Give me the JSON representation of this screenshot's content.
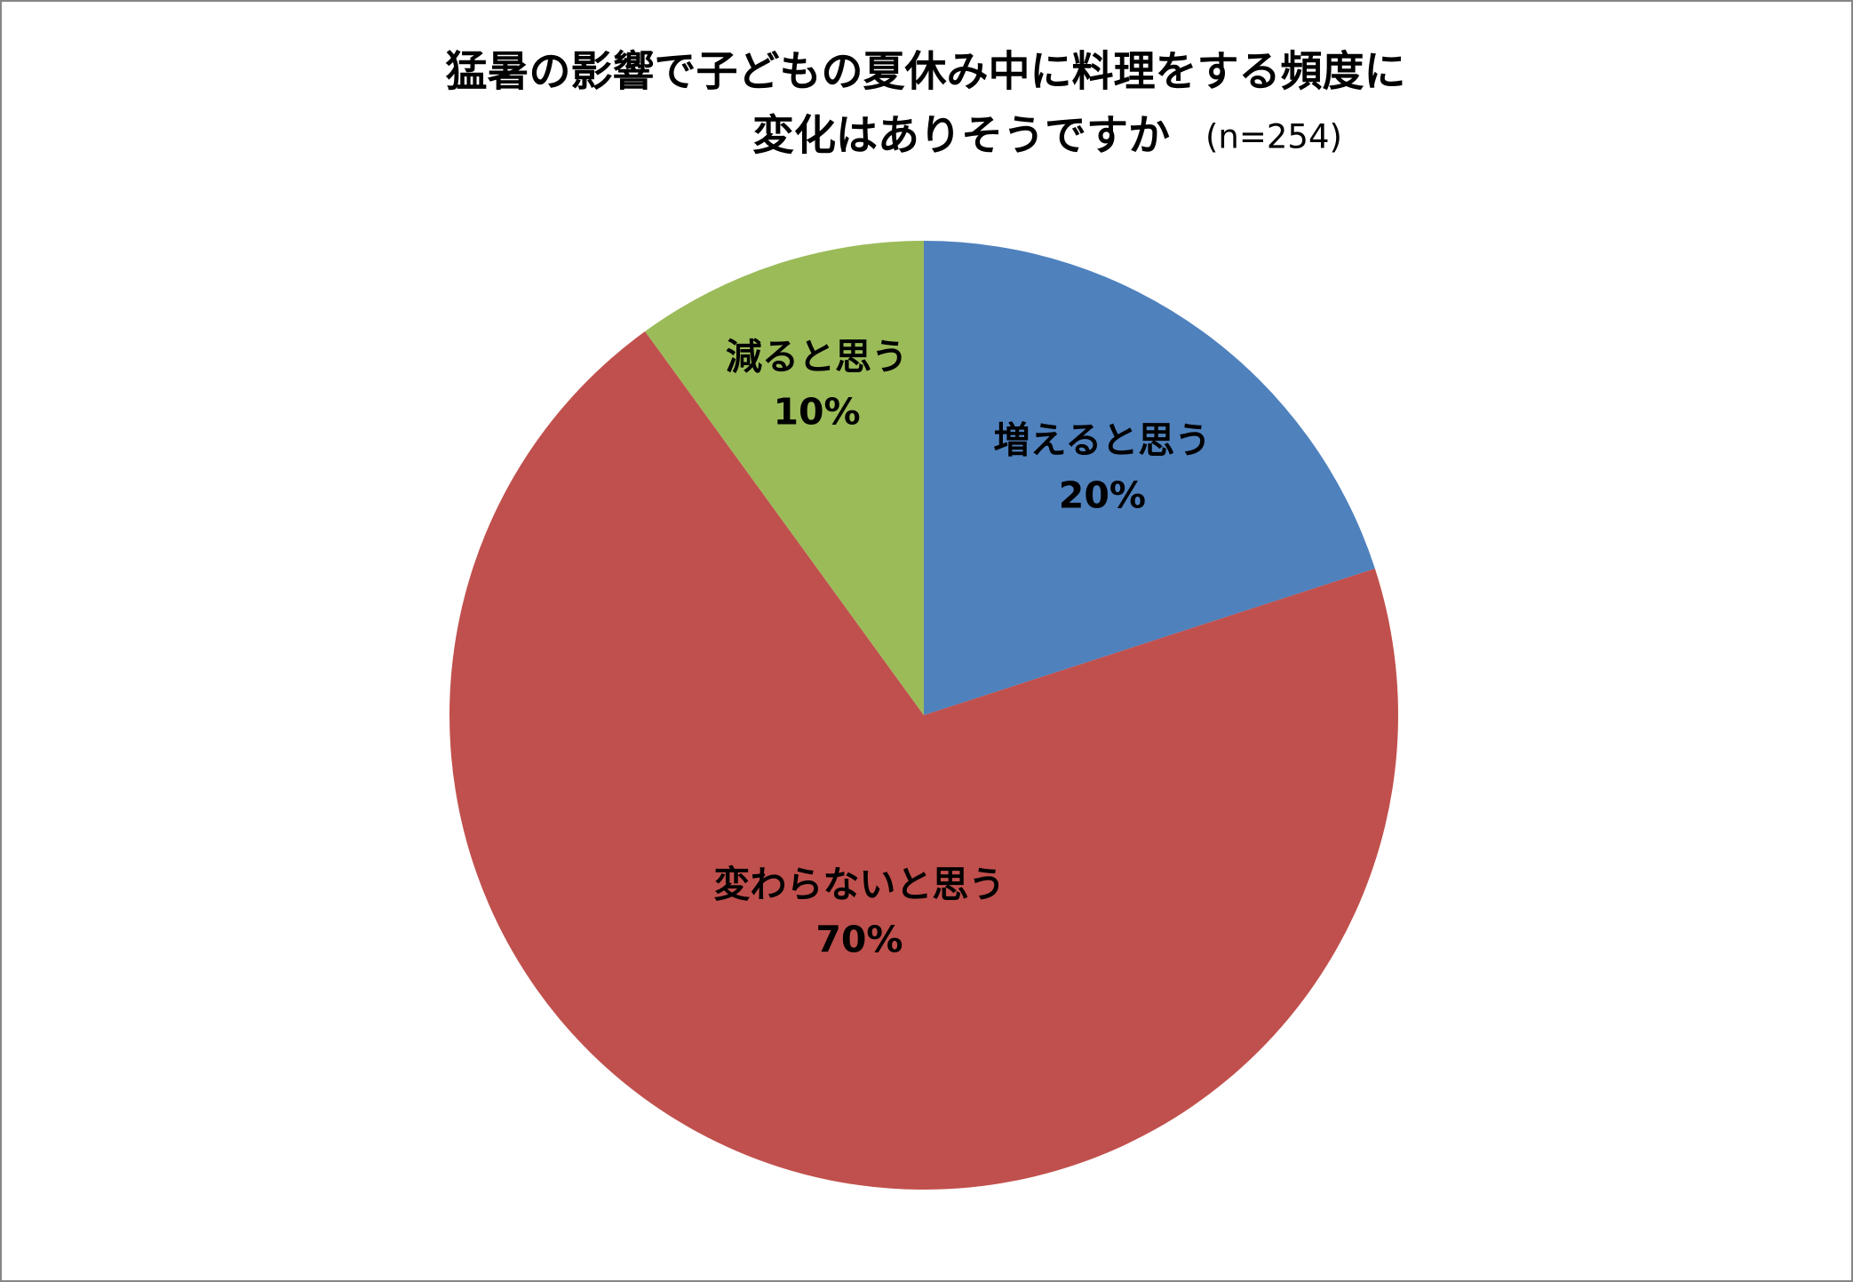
{
  "chart_data": {
    "type": "pie",
    "title": [
      "猛暑の影響で子どもの夏休み中に料理をする頻度に",
      "変化はありそうですか"
    ],
    "subtitle": "(n=254)",
    "categories": [
      "増えると思う",
      "変わらないと思う",
      "減ると思う"
    ],
    "values": [
      20,
      70,
      10
    ],
    "value_labels": [
      "20%",
      "70%",
      "10%"
    ],
    "colors": [
      "#4f81bd",
      "#c0504d",
      "#9bbb59"
    ]
  }
}
